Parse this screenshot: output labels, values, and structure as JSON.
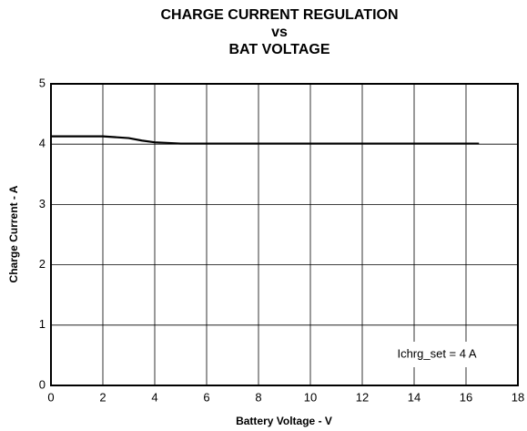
{
  "chart_data": {
    "type": "line",
    "title": [
      "CHARGE CURRENT REGULATION",
      "vs",
      "BAT VOLTAGE"
    ],
    "x_label": "Battery Voltage - V",
    "y_label": "Charge Current - A",
    "annotation": "Ichrg_set = 4 A",
    "x": [
      0,
      2,
      3,
      3.5,
      4,
      5,
      16.5
    ],
    "series": [
      {
        "name": "Ichrg_set = 4 A",
        "color": "#000000",
        "values": [
          4.13,
          4.13,
          4.1,
          4.06,
          4.03,
          4.01,
          4.01
        ]
      }
    ],
    "xlim": [
      0,
      18
    ],
    "xticks": [
      0,
      2,
      4,
      6,
      8,
      10,
      12,
      14,
      16,
      18
    ],
    "ylim": [
      0,
      5
    ],
    "yticks": [
      0,
      1,
      2,
      3,
      4,
      5
    ],
    "grid": true
  }
}
